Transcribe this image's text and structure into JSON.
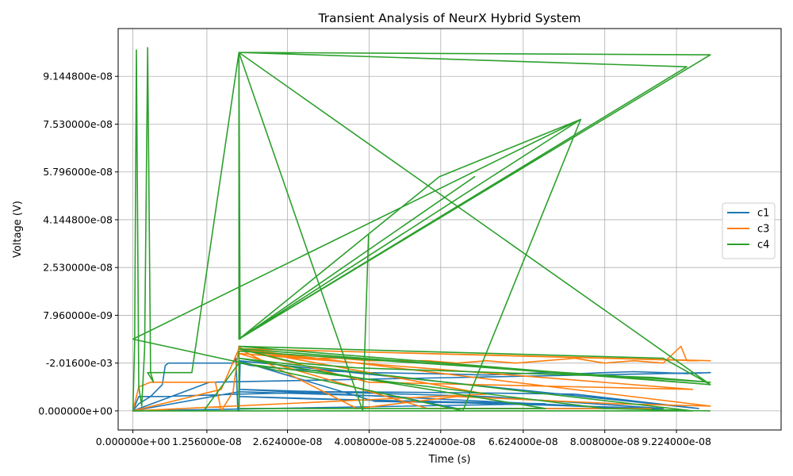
{
  "chart_data": {
    "type": "line",
    "title": "Transient Analysis of NeurX Hybrid System",
    "xlabel": "Time (s)",
    "ylabel": "Voltage (V)",
    "grid": true,
    "legend_placement": "center-right",
    "x_ticks": [
      {
        "value": 0,
        "label": "0.000000e+00"
      },
      {
        "value": 1.256e-08,
        "label": "1.256000e-08"
      },
      {
        "value": 2.624e-08,
        "label": "2.624000e-08"
      },
      {
        "value": 4.008e-08,
        "label": "4.008000e-08"
      },
      {
        "value": 5.224e-08,
        "label": "5.224000e-08"
      },
      {
        "value": 6.624e-08,
        "label": "6.624000e-08"
      },
      {
        "value": 8.008e-08,
        "label": "8.008000e-08"
      },
      {
        "value": 9.224e-08,
        "label": "9.224000e-08"
      }
    ],
    "y_ticks": [
      {
        "value": 0,
        "label": "0.000000e+00"
      },
      {
        "value": 1,
        "label": "-2.01600e-03"
      },
      {
        "value": 2,
        "label": "7.960000e-09"
      },
      {
        "value": 3,
        "label": "2.530000e-08"
      },
      {
        "value": 4,
        "label": "4.144800e-08"
      },
      {
        "value": 5,
        "label": "5.796000e-08"
      },
      {
        "value": 6,
        "label": "7.530000e-08"
      },
      {
        "value": 7,
        "label": "9.144800e-08"
      }
    ],
    "xlim": [
      -2.5e-09,
      1.1e-07
    ],
    "ylim": [
      -0.4,
      8.0
    ],
    "series": [
      {
        "name": "c1",
        "color": "#1f77b4",
        "x": [
          0,
          1e-09,
          3e-09,
          5e-09,
          5.5e-09,
          6e-09,
          7e-09,
          1.7e-08,
          1.75e-08,
          1.78e-08,
          1.8e-08,
          1.82e-08,
          1.84e-08,
          2e-08,
          2.4e-08,
          3e-08,
          4e-08,
          5e-08,
          6e-08,
          7e-08,
          7.6e-08,
          8e-08,
          8.5e-08,
          9e-08,
          9.4e-08,
          9.8e-08,
          1.3e-08,
          0,
          1e-09,
          5e-09,
          1.8e-08,
          3.5e-08,
          5.5e-08,
          7.5e-08,
          9.6e-08,
          1.8e-08,
          4.1e-08,
          6.5e-08,
          8.5e-08,
          1.8e-08,
          6e-08,
          9e-08,
          1.8e-08,
          3e-08,
          5e-08,
          7e-08,
          0,
          1.8e-08,
          4.5e-08,
          5.5e-08,
          9e-08
        ],
        "y": [
          0,
          0.15,
          0.3,
          0.55,
          0.95,
          1.0,
          1.0,
          1.0,
          1.1,
          0.0,
          0.0,
          1.0,
          1.0,
          0.95,
          0.9,
          0.85,
          0.8,
          0.78,
          0.75,
          0.8,
          0.78,
          0.8,
          0.82,
          0.8,
          0.78,
          0.8,
          0.6,
          0,
          0.3,
          0.3,
          0.35,
          0.4,
          0.38,
          0.35,
          0.05,
          1.05,
          0.2,
          0.15,
          0.05,
          0.45,
          0.3,
          0.05,
          0.3,
          0.25,
          0.2,
          0.15,
          0,
          0.4,
          0.3,
          0.05,
          0.05
        ]
      },
      {
        "name": "c3",
        "color": "#ff7f0e",
        "x": [
          0,
          1e-09,
          3e-09,
          1e-08,
          1.4e-08,
          1.5e-08,
          1.7e-08,
          1.8e-08,
          1.85e-08,
          2e-08,
          2.2e-08,
          2.6e-08,
          3e-08,
          3.5e-08,
          4e-08,
          4.5e-08,
          5e-08,
          5.5e-08,
          6e-08,
          6.5e-08,
          7e-08,
          7.5e-08,
          8e-08,
          8.5e-08,
          9e-08,
          9.3e-08,
          9.4e-08,
          9.6e-08,
          1.8e-08,
          9.8e-08,
          1.8e-08,
          3.8e-08,
          5.5e-08,
          8.2e-08,
          9.8e-08,
          1.8e-08,
          6e-08,
          0,
          1.5e-08,
          1.8e-08,
          4e-08,
          9.5e-08,
          1.8e-08,
          5e-08,
          8.8e-08
        ],
        "y": [
          0,
          0.5,
          0.6,
          0.6,
          0.6,
          0.0,
          0.4,
          1.35,
          1.3,
          1.25,
          1.2,
          1.15,
          1.1,
          1.1,
          1.05,
          1.05,
          1.05,
          1.0,
          1.05,
          1.0,
          1.05,
          1.1,
          1.0,
          1.05,
          1.0,
          1.35,
          1.05,
          1.05,
          1.3,
          1.05,
          1.3,
          0.05,
          0.3,
          0.15,
          0.1,
          1.3,
          0.35,
          0,
          0.45,
          1.3,
          0.6,
          0.45,
          1.2,
          0.05,
          0.05
        ]
      },
      {
        "name": "c4",
        "color": "#2ca02c",
        "x": [
          0,
          3e-10,
          6e-10,
          1e-09,
          1.5e-09,
          2e-09,
          2.5e-09,
          3e-09,
          3.5e-09,
          2.5e-09,
          1e-08,
          1.8e-08,
          1.82e-08,
          1.8e-08,
          9.8e-08,
          1.8e-08,
          1.8e-08,
          9.4e-08,
          1.8e-08,
          4e-08,
          5.2e-08,
          7.6e-08,
          0,
          5.6e-08,
          7.6e-08,
          1.8e-08,
          5.8e-08,
          1.8e-08,
          4e-08,
          3.9e-08,
          1.8e-08,
          9.8e-08,
          1.8e-08,
          9e-08,
          9.8e-08,
          1.8e-08,
          2.8e-08,
          3.8e-08,
          5e-08,
          6.2e-08,
          7.5e-08,
          8.8e-08,
          9.8e-08,
          1.8e-08,
          1.8e-08,
          7e-08,
          1.8e-08,
          9.5e-08,
          0,
          1.2e-08,
          1.8e-08,
          8e-08,
          9.8e-08
        ],
        "y": [
          0,
          1.4,
          7.55,
          0.5,
          0.1,
          1.3,
          7.6,
          0.8,
          0.6,
          0.8,
          0.8,
          7.5,
          1.5,
          7.5,
          7.45,
          1.5,
          7.5,
          7.2,
          1.5,
          3.7,
          4.9,
          6.1,
          1.5,
          0.0,
          6.1,
          1.5,
          4.9,
          1.5,
          3.7,
          0.0,
          7.5,
          0.55,
          1.35,
          1.1,
          0.55,
          1.3,
          1.0,
          0.9,
          0.85,
          0.8,
          0.75,
          0.7,
          0.6,
          1.25,
          0.05,
          0.05,
          1.1,
          0.0,
          0,
          0.0,
          1.0,
          0.05,
          0.0
        ]
      }
    ]
  }
}
